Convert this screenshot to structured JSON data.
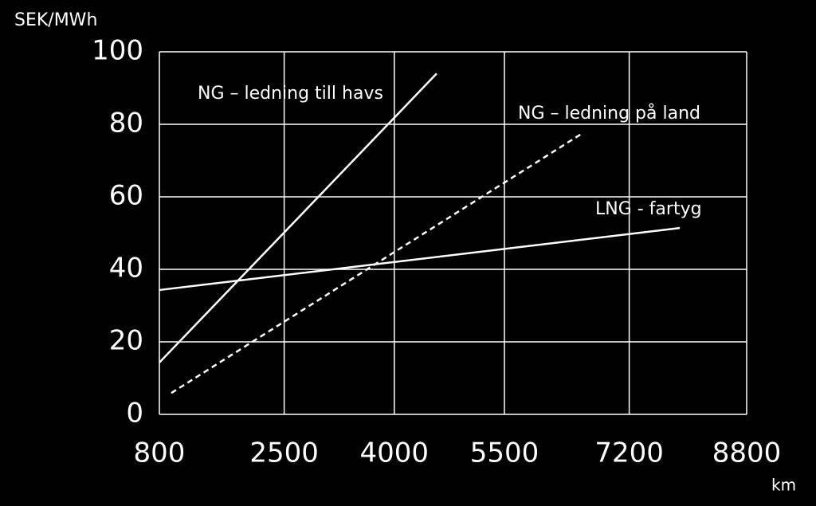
{
  "chart_data": {
    "type": "line",
    "y_axis_label": "SEK/MWh",
    "x_axis_label": "km",
    "xlim": [
      800,
      8800
    ],
    "xticks": [
      800,
      2500,
      4000,
      5500,
      7200,
      8800
    ],
    "ylim": [
      0,
      100
    ],
    "yticks": [
      0,
      20,
      40,
      60,
      80,
      100
    ],
    "grid": true,
    "series": [
      {
        "name": "NG – ledning till havs",
        "color": "#ffffff",
        "style": "solid",
        "x": [
          800,
          4577
        ],
        "values": [
          14.3,
          94
        ]
      },
      {
        "name": "NG – ledning på land",
        "color": "#ffffff",
        "style": "dashed",
        "x": [
          963,
          6553
        ],
        "values": [
          5.9,
          77.4
        ]
      },
      {
        "name": "LNG - fartyg",
        "color": "#ffffff",
        "style": "solid",
        "x": [
          800,
          7888
        ],
        "values": [
          34.3,
          51.4
        ]
      }
    ]
  }
}
